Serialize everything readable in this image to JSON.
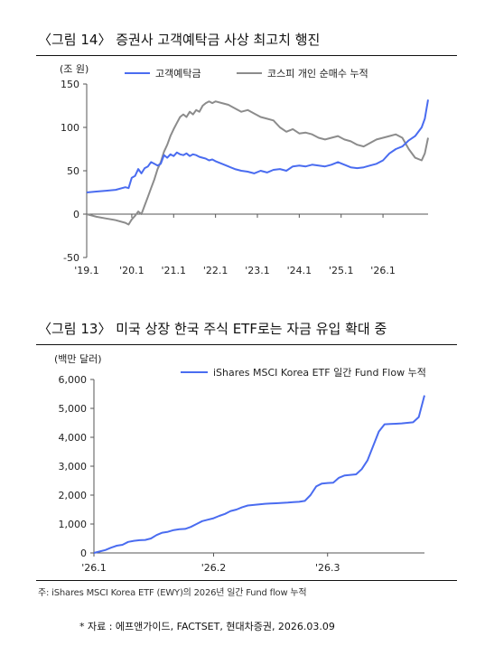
{
  "chart_data": [
    {
      "type": "line",
      "title": "〈그림 14〉 증권사 고객예탁금 사상 최고치 행진",
      "unit_label": "(조 원)",
      "ylim": [
        -50,
        150
      ],
      "y_ticks": [
        -50,
        0,
        50,
        100,
        150
      ],
      "x_tick_labels": [
        "'19.1",
        "'20.1",
        "'21.1",
        "'22.1",
        "'23.1",
        "'24.1",
        "'25.1",
        "'26.1"
      ],
      "grid": false,
      "legend_position": "top",
      "series": [
        {
          "name": "고객예탁금",
          "color": "#4a6cf0",
          "points": [
            [
              0,
              25
            ],
            [
              3,
              26
            ],
            [
              6,
              27
            ],
            [
              9,
              28
            ],
            [
              12,
              31
            ],
            [
              13,
              30
            ],
            [
              14,
              42
            ],
            [
              15,
              44
            ],
            [
              16,
              52
            ],
            [
              17,
              47
            ],
            [
              18,
              53
            ],
            [
              19,
              55
            ],
            [
              20,
              60
            ],
            [
              21,
              58
            ],
            [
              22,
              56
            ],
            [
              23,
              58
            ],
            [
              24,
              68
            ],
            [
              25,
              65
            ],
            [
              26,
              69
            ],
            [
              27,
              67
            ],
            [
              28,
              71
            ],
            [
              29,
              69
            ],
            [
              30,
              68
            ],
            [
              31,
              70
            ],
            [
              32,
              67
            ],
            [
              33,
              69
            ],
            [
              34,
              68
            ],
            [
              35,
              66
            ],
            [
              36,
              65
            ],
            [
              37,
              64
            ],
            [
              38,
              62
            ],
            [
              39,
              63
            ],
            [
              40,
              61
            ],
            [
              42,
              58
            ],
            [
              44,
              55
            ],
            [
              46,
              52
            ],
            [
              48,
              50
            ],
            [
              50,
              49
            ],
            [
              52,
              47
            ],
            [
              54,
              50
            ],
            [
              56,
              48
            ],
            [
              58,
              51
            ],
            [
              60,
              52
            ],
            [
              62,
              50
            ],
            [
              64,
              55
            ],
            [
              66,
              56
            ],
            [
              68,
              55
            ],
            [
              70,
              57
            ],
            [
              72,
              56
            ],
            [
              74,
              55
            ],
            [
              76,
              57
            ],
            [
              78,
              60
            ],
            [
              80,
              57
            ],
            [
              82,
              54
            ],
            [
              84,
              53
            ],
            [
              86,
              54
            ],
            [
              88,
              56
            ],
            [
              90,
              58
            ],
            [
              92,
              62
            ],
            [
              94,
              70
            ],
            [
              96,
              75
            ],
            [
              98,
              78
            ],
            [
              100,
              85
            ],
            [
              102,
              90
            ],
            [
              104,
              100
            ],
            [
              105,
              110
            ],
            [
              106,
              132
            ]
          ]
        },
        {
          "name": "코스피 개인 순매수 누적",
          "color": "#8c8c8c",
          "points": [
            [
              0,
              0
            ],
            [
              3,
              -3
            ],
            [
              6,
              -5
            ],
            [
              9,
              -7
            ],
            [
              12,
              -10
            ],
            [
              13,
              -12
            ],
            [
              14,
              -6
            ],
            [
              15,
              -2
            ],
            [
              16,
              3
            ],
            [
              17,
              0
            ],
            [
              18,
              10
            ],
            [
              19,
              20
            ],
            [
              20,
              30
            ],
            [
              21,
              40
            ],
            [
              22,
              52
            ],
            [
              23,
              60
            ],
            [
              24,
              72
            ],
            [
              25,
              80
            ],
            [
              26,
              90
            ],
            [
              27,
              98
            ],
            [
              28,
              105
            ],
            [
              29,
              112
            ],
            [
              30,
              115
            ],
            [
              31,
              112
            ],
            [
              32,
              118
            ],
            [
              33,
              115
            ],
            [
              34,
              120
            ],
            [
              35,
              118
            ],
            [
              36,
              125
            ],
            [
              37,
              128
            ],
            [
              38,
              130
            ],
            [
              39,
              128
            ],
            [
              40,
              130
            ],
            [
              42,
              128
            ],
            [
              44,
              126
            ],
            [
              46,
              122
            ],
            [
              48,
              118
            ],
            [
              50,
              120
            ],
            [
              52,
              116
            ],
            [
              54,
              112
            ],
            [
              56,
              110
            ],
            [
              58,
              108
            ],
            [
              60,
              100
            ],
            [
              62,
              95
            ],
            [
              64,
              98
            ],
            [
              66,
              93
            ],
            [
              68,
              94
            ],
            [
              70,
              92
            ],
            [
              72,
              88
            ],
            [
              74,
              86
            ],
            [
              76,
              88
            ],
            [
              78,
              90
            ],
            [
              80,
              86
            ],
            [
              82,
              84
            ],
            [
              84,
              80
            ],
            [
              86,
              78
            ],
            [
              88,
              82
            ],
            [
              90,
              86
            ],
            [
              92,
              88
            ],
            [
              94,
              90
            ],
            [
              96,
              92
            ],
            [
              98,
              88
            ],
            [
              100,
              75
            ],
            [
              102,
              65
            ],
            [
              104,
              62
            ],
            [
              105,
              70
            ],
            [
              106,
              88
            ]
          ]
        }
      ]
    },
    {
      "type": "line",
      "title": "〈그림 13〉 미국 상장 한국 주식 ETF로는 자금 유입 확대 중",
      "unit_label": "(백만 달러)",
      "ylim": [
        0,
        6000
      ],
      "y_ticks": [
        "0",
        "1,000",
        "2,000",
        "3,000",
        "4,000",
        "5,000",
        "6,000"
      ],
      "y_tick_values": [
        0,
        1000,
        2000,
        3000,
        4000,
        5000,
        6000
      ],
      "x_tick_labels": [
        "'26.1",
        "'26.2",
        "'26.3"
      ],
      "grid": false,
      "legend_position": "top-right",
      "series": [
        {
          "name": "iShares MSCI Korea ETF 일간 Fund Flow 누적",
          "color": "#4a6cf0",
          "points": [
            [
              0,
              0
            ],
            [
              1,
              50
            ],
            [
              2,
              100
            ],
            [
              3,
              180
            ],
            [
              4,
              250
            ],
            [
              5,
              280
            ],
            [
              6,
              380
            ],
            [
              7,
              420
            ],
            [
              8,
              440
            ],
            [
              9,
              450
            ],
            [
              10,
              500
            ],
            [
              11,
              620
            ],
            [
              12,
              700
            ],
            [
              13,
              730
            ],
            [
              14,
              790
            ],
            [
              15,
              820
            ],
            [
              16,
              830
            ],
            [
              17,
              900
            ],
            [
              18,
              1000
            ],
            [
              19,
              1100
            ],
            [
              20,
              1150
            ],
            [
              21,
              1200
            ],
            [
              22,
              1280
            ],
            [
              23,
              1350
            ],
            [
              24,
              1450
            ],
            [
              25,
              1500
            ],
            [
              26,
              1580
            ],
            [
              27,
              1640
            ],
            [
              28,
              1660
            ],
            [
              29,
              1680
            ],
            [
              30,
              1700
            ],
            [
              31,
              1710
            ],
            [
              32,
              1720
            ],
            [
              33,
              1730
            ],
            [
              34,
              1740
            ],
            [
              35,
              1760
            ],
            [
              36,
              1770
            ],
            [
              37,
              1800
            ],
            [
              38,
              2000
            ],
            [
              39,
              2300
            ],
            [
              40,
              2400
            ],
            [
              41,
              2420
            ],
            [
              42,
              2430
            ],
            [
              43,
              2600
            ],
            [
              44,
              2680
            ],
            [
              45,
              2700
            ],
            [
              46,
              2720
            ],
            [
              47,
              2900
            ],
            [
              48,
              3200
            ],
            [
              49,
              3700
            ],
            [
              50,
              4200
            ],
            [
              51,
              4450
            ],
            [
              52,
              4460
            ],
            [
              53,
              4470
            ],
            [
              54,
              4480
            ],
            [
              55,
              4500
            ],
            [
              56,
              4520
            ],
            [
              57,
              4700
            ],
            [
              58,
              5450
            ]
          ]
        }
      ]
    }
  ],
  "footnote": "주: iShares MSCI Korea ETF (EWY)의 2026년 일간 Fund flow 누적",
  "source": "* 자료 : 에프앤가이드, FACTSET,  현대차증권, 2026.03.09"
}
